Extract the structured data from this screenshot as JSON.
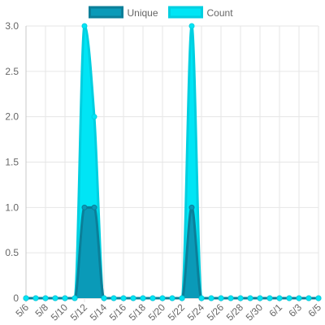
{
  "chart_data": {
    "type": "area",
    "title": "",
    "xlabel": "",
    "ylabel": "",
    "ylim": [
      0,
      3
    ],
    "yticks": [
      "0",
      "0.5",
      "1.0",
      "1.5",
      "2.0",
      "2.5",
      "3.0"
    ],
    "grid": true,
    "legend": "top",
    "categories": [
      "5/6",
      "5/7",
      "5/8",
      "5/9",
      "5/10",
      "5/11",
      "5/12",
      "5/13",
      "5/14",
      "5/15",
      "5/16",
      "5/17",
      "5/18",
      "5/19",
      "5/20",
      "5/21",
      "5/22",
      "5/23",
      "5/24",
      "5/25",
      "5/26",
      "5/27",
      "5/28",
      "5/29",
      "5/30",
      "5/31",
      "6/1",
      "6/2",
      "6/3",
      "6/4",
      "6/5"
    ],
    "tick_labels": [
      "5/6",
      "5/8",
      "5/10",
      "5/12",
      "5/14",
      "5/16",
      "5/18",
      "5/20",
      "5/22",
      "5/24",
      "5/26",
      "5/28",
      "5/30",
      "6/1",
      "6/3",
      "6/5"
    ],
    "series": [
      {
        "name": "Unique",
        "color": "#0a9ab8",
        "border": "#0b7f99",
        "values": [
          0,
          0,
          0,
          0,
          0,
          0,
          1,
          1,
          0,
          0,
          0,
          0,
          0,
          0,
          0,
          0,
          0,
          1,
          0,
          0,
          0,
          0,
          0,
          0,
          0,
          0,
          0,
          0,
          0,
          0,
          0
        ]
      },
      {
        "name": "Count",
        "color": "#00e5f5",
        "border": "#00cfe0",
        "values": [
          0,
          0,
          0,
          0,
          0,
          0,
          3,
          2,
          0,
          0,
          0,
          0,
          0,
          0,
          0,
          0,
          0,
          3,
          0,
          0,
          0,
          0,
          0,
          0,
          0,
          0,
          0,
          0,
          0,
          0,
          0
        ]
      }
    ]
  }
}
